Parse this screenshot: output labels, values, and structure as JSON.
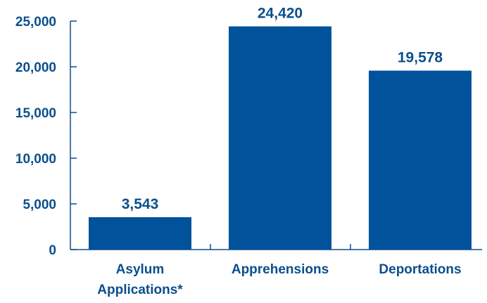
{
  "chart_data": {
    "type": "bar",
    "categories": [
      [
        "Asylum",
        "Applications*"
      ],
      [
        "Apprehensions"
      ],
      [
        "Deportations"
      ]
    ],
    "values": [
      3543,
      24420,
      19578
    ],
    "value_labels": [
      "3,543",
      "24,420",
      "19,578"
    ],
    "y_ticks": [
      0,
      5000,
      10000,
      15000,
      20000,
      25000
    ],
    "y_tick_labels": [
      "0",
      "5,000",
      "10,000",
      "15,000",
      "20,000",
      "25,000"
    ],
    "ylim": [
      0,
      25000
    ],
    "title": "",
    "xlabel": "",
    "ylabel": "",
    "grid": false,
    "colors": {
      "bar": "#00529b",
      "axis": "#0b4f8c",
      "text": "#0b4f8c"
    }
  }
}
